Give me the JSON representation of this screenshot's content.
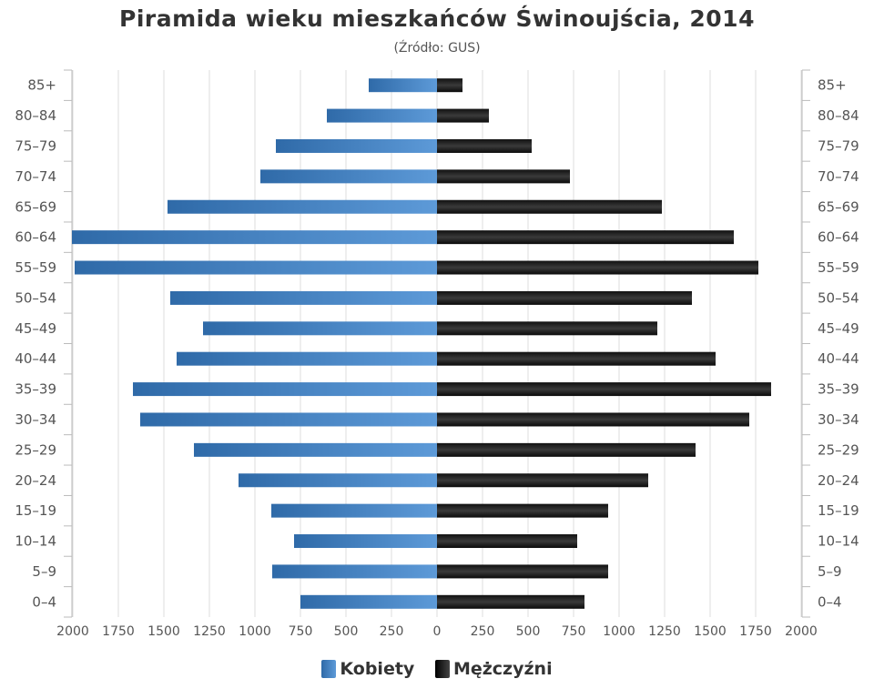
{
  "chart_data": {
    "type": "bar",
    "orientation": "horizontal-population-pyramid",
    "title": "Piramida wieku mieszkańców Świnoujścia, 2014",
    "subtitle": "(Źródło: GUS)",
    "categories": [
      "85+",
      "80–84",
      "75–79",
      "70–74",
      "65–69",
      "60–64",
      "55–59",
      "50–54",
      "45–49",
      "40–44",
      "35–39",
      "30–34",
      "25–29",
      "20–24",
      "15–19",
      "10–14",
      "5–9",
      "0–4"
    ],
    "series": [
      {
        "name": "Kobiety",
        "side": "left",
        "color": "#3a7bbf",
        "values": [
          375,
          605,
          885,
          970,
          1480,
          2005,
          1990,
          1465,
          1285,
          1430,
          1670,
          1630,
          1335,
          1090,
          910,
          785,
          905,
          750
        ]
      },
      {
        "name": "Mężczyźni",
        "side": "right",
        "color": "#1a1a1a",
        "values": [
          140,
          285,
          520,
          730,
          1235,
          1630,
          1765,
          1400,
          1210,
          1530,
          1835,
          1715,
          1420,
          1160,
          940,
          770,
          940,
          810
        ]
      }
    ],
    "xlim": [
      0,
      2000
    ],
    "x_ticks": [
      "2000",
      "1750",
      "1500",
      "1250",
      "1000",
      "750",
      "500",
      "250",
      "0",
      "250",
      "500",
      "750",
      "1000",
      "1250",
      "1500",
      "1750",
      "2000"
    ],
    "grid": true,
    "legend_position": "bottom"
  }
}
